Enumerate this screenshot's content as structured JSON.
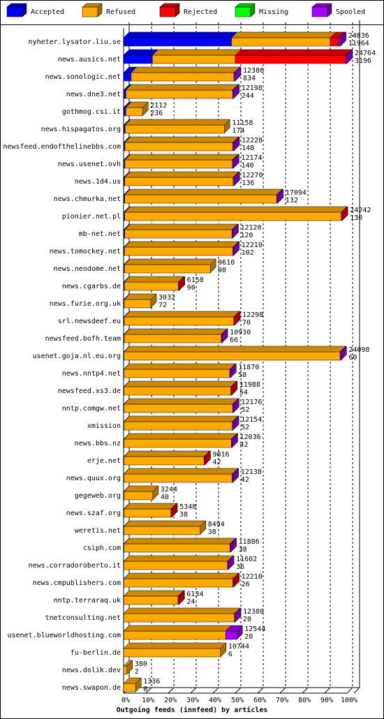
{
  "chart_data": {
    "type": "stacked-bar-3d",
    "xlabel": "Outgoing feeds (innfeed) by articles",
    "categories": [
      "nyheter.lysator.liu.se",
      "news.ausics.net",
      "news.sonologic.net",
      "news.dne3.net",
      "gothmog.csi.it",
      "news.hispagatos.org",
      "newsfeed.endofthelinebbs.com",
      "news.usenet.ovh",
      "news.1d4.us",
      "news.chmurka.net",
      "pionier.net.pl",
      "mb-net.net",
      "news.tomockey.net",
      "news.neodome.net",
      "news.cgarbs.de",
      "news.furie.org.uk",
      "srl.newsdeef.eu",
      "newsfeed.bofh.team",
      "usenet.goja.nl.eu.org",
      "news.nntp4.net",
      "newsfeed.xs3.de",
      "nntp.comgw.net",
      "xmission",
      "news.bbs.nz",
      "erje.net",
      "news.quux.org",
      "gegeweb.org",
      "news.szaf.org",
      "weretis.net",
      "csiph.com",
      "news.corradoroberto.it",
      "news.cmpublishers.com",
      "nntp.terraraq.uk",
      "tnetconsulting.net",
      "usenet.blueworldhosting.com",
      "fu-berlin.de",
      "news.dolik.dev",
      "news.swapon.de"
    ],
    "offered": [
      24036,
      24764,
      12386,
      12198,
      2112,
      11158,
      12228,
      12174,
      12270,
      17094,
      24242,
      12120,
      12210,
      9610,
      6158,
      3032,
      12298,
      10930,
      24098,
      11870,
      11988,
      12176,
      12154,
      12036,
      9016,
      12138,
      3244,
      5348,
      8494,
      11886,
      11602,
      12210,
      6134,
      12380,
      12544,
      10744,
      380,
      1336
    ],
    "accepted": [
      11964,
      3196,
      834,
      244,
      236,
      174,
      148,
      140,
      136,
      132,
      130,
      120,
      102,
      90,
      90,
      72,
      70,
      66,
      60,
      58,
      54,
      52,
      52,
      42,
      42,
      42,
      40,
      38,
      38,
      38,
      36,
      26,
      24,
      20,
      20,
      6,
      2,
      0
    ],
    "series": [
      {
        "name": "Accepted",
        "color": "#0000ff",
        "values": [
          48.3,
          12.9,
          3.4,
          1.0,
          1.0,
          0.7,
          0.6,
          0.6,
          0.5,
          0.5,
          0.5,
          0.5,
          0.4,
          0.4,
          0.4,
          0.3,
          0.3,
          0.3,
          0.2,
          0.2,
          0.2,
          0.2,
          0.2,
          0.2,
          0.2,
          0.2,
          0.2,
          0.2,
          0.2,
          0.2,
          0.1,
          0.1,
          0.1,
          0.1,
          0.1,
          0,
          0,
          0
        ]
      },
      {
        "name": "Refused",
        "color": "#ffaa00",
        "values": [
          44.2,
          37.1,
          46.0,
          47.8,
          7.5,
          44.4,
          48.3,
          48.1,
          48.5,
          68.0,
          96.9,
          48.0,
          48.5,
          38.4,
          24.1,
          11.9,
          49.0,
          43.4,
          96.7,
          47.3,
          47.8,
          48.6,
          48.5,
          48.0,
          35.8,
          48.4,
          12.9,
          21.0,
          34.1,
          47.4,
          46.4,
          48.8,
          24.3,
          49.5,
          45.6,
          43.4,
          1.5,
          5.4
        ]
      },
      {
        "name": "Rejected",
        "color": "#ff0000",
        "values": [
          3.8,
          49.5,
          0,
          0,
          0,
          0,
          0,
          0,
          0,
          0,
          0.5,
          0,
          0,
          0,
          0.4,
          0,
          0.4,
          0,
          0,
          0,
          0.4,
          0,
          0,
          0,
          0.4,
          0,
          0,
          0.4,
          0,
          0,
          0,
          0.4,
          0.4,
          0,
          0,
          0,
          0,
          0
        ]
      },
      {
        "name": "Missing",
        "color": "#00ff00",
        "values": [
          0,
          0,
          0,
          0,
          0,
          0,
          0,
          0,
          0,
          0,
          0,
          0,
          0,
          0,
          0,
          0,
          0,
          0,
          0,
          0,
          0,
          0,
          0,
          0,
          0,
          0,
          0,
          0,
          0,
          0,
          0,
          0,
          0,
          0,
          0,
          0,
          0,
          0
        ]
      },
      {
        "name": "Spooled",
        "color": "#aa00ff",
        "values": [
          0.8,
          0.5,
          0.6,
          0.5,
          0,
          0,
          0.5,
          0.5,
          0.5,
          0.5,
          0,
          0.4,
          0.4,
          0,
          0,
          0,
          0,
          0.4,
          0.4,
          0.4,
          0,
          0.4,
          0.4,
          0.4,
          0,
          0.4,
          0,
          0,
          0,
          0.4,
          0.4,
          0,
          0,
          0.4,
          5.0,
          0,
          0,
          0
        ]
      }
    ],
    "xlim": [
      0,
      100
    ],
    "xticks": [
      {
        "value": 0,
        "label": "0%"
      },
      {
        "value": 10,
        "label": "10%"
      },
      {
        "value": 20,
        "label": "20%"
      },
      {
        "value": 30,
        "label": "30%"
      },
      {
        "value": 40,
        "label": "40%"
      },
      {
        "value": 50,
        "label": "50%"
      },
      {
        "value": 60,
        "label": "60%"
      },
      {
        "value": 70,
        "label": "70%"
      },
      {
        "value": 80,
        "label": "80%"
      },
      {
        "value": 90,
        "label": "90%"
      },
      {
        "value": 100,
        "label": "100%"
      }
    ],
    "grid": true
  }
}
